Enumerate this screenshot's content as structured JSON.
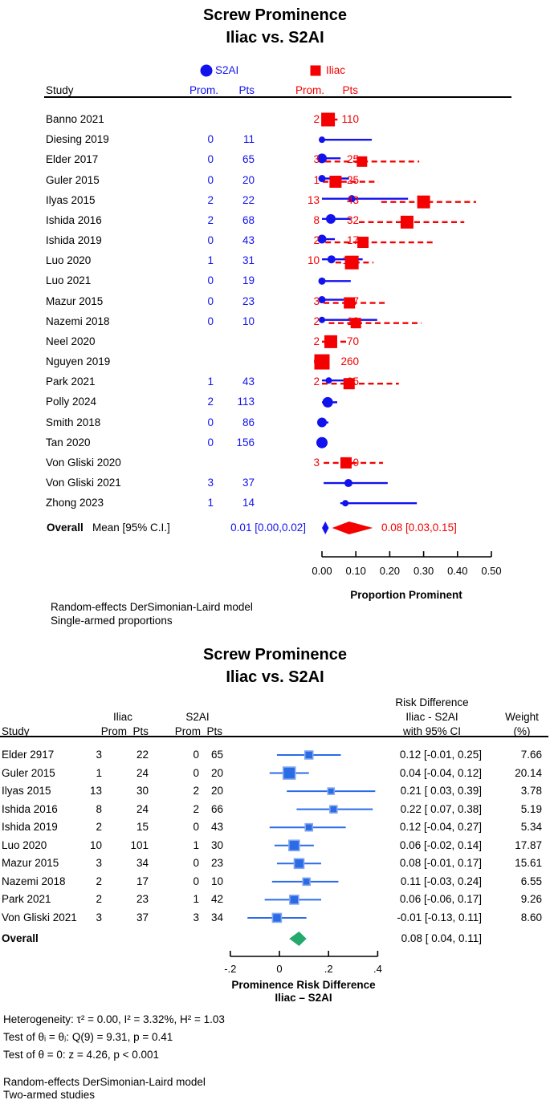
{
  "colors": {
    "s2ai_blue": "#1212ee",
    "iliac_red": "#f40000",
    "rd_blue_fill": "#2b6be6",
    "rd_blue_border": "#84a8f0",
    "overall_green": "#23a96b",
    "text": "#000000"
  },
  "chart_data": [
    {
      "type": "forest",
      "title_lines": [
        "Screw Prominence",
        "Iliac vs. S2AI"
      ],
      "legend": [
        {
          "label": "S2AI",
          "marker": "circle",
          "color": "#1212ee"
        },
        {
          "label": "Iliac",
          "marker": "square",
          "color": "#f40000"
        }
      ],
      "column_headers": {
        "study": "Study",
        "s2ai_prom": "Prom.",
        "s2ai_pts": "Pts",
        "iliac_prom": "Prom.",
        "iliac_pts": "Pts"
      },
      "xlabel": "Proportion Prominent",
      "xlim": [
        0,
        0.5
      ],
      "grid": false,
      "xticks": [
        {
          "v": 0.0,
          "label": "0.00"
        },
        {
          "v": 0.1,
          "label": "0.10"
        },
        {
          "v": 0.2,
          "label": "0.20"
        },
        {
          "v": 0.3,
          "label": "0.30"
        },
        {
          "v": 0.4,
          "label": "0.40"
        },
        {
          "v": 0.5,
          "label": "0.50"
        }
      ],
      "rows": [
        {
          "study": "Banno 2021",
          "iliac": {
            "prom": 2,
            "pts": 110,
            "est": 0.018,
            "lo": 0.002,
            "hi": 0.046,
            "size": 17
          }
        },
        {
          "study": "Diesing 2019",
          "s2ai": {
            "prom": 0,
            "pts": 11,
            "est": 0.0,
            "lo": 0.0,
            "hi": 0.147,
            "size": 8
          }
        },
        {
          "study": "Elder 2017",
          "s2ai": {
            "prom": 0,
            "pts": 65,
            "est": 0.0,
            "lo": 0.0,
            "hi": 0.055,
            "size": 12
          },
          "iliac": {
            "prom": 3,
            "pts": 25,
            "est": 0.118,
            "lo": 0.01,
            "hi": 0.287,
            "size": 13
          }
        },
        {
          "study": "Guler 2015",
          "s2ai": {
            "prom": 0,
            "pts": 20,
            "est": 0.0,
            "lo": 0.0,
            "hi": 0.08,
            "size": 9
          },
          "iliac": {
            "prom": 1,
            "pts": 25,
            "est": 0.04,
            "lo": 0.002,
            "hi": 0.166,
            "size": 15
          }
        },
        {
          "study": "Ilyas 2015",
          "s2ai": {
            "prom": 2,
            "pts": 22,
            "est": 0.088,
            "lo": 0.0,
            "hi": 0.254,
            "size": 9
          },
          "iliac": {
            "prom": 13,
            "pts": 43,
            "est": 0.3,
            "lo": 0.175,
            "hi": 0.455,
            "size": 16
          }
        },
        {
          "study": "Ishida 2016",
          "s2ai": {
            "prom": 2,
            "pts": 68,
            "est": 0.026,
            "lo": 0.0,
            "hi": 0.085,
            "size": 12
          },
          "iliac": {
            "prom": 8,
            "pts": 32,
            "est": 0.251,
            "lo": 0.109,
            "hi": 0.42,
            "size": 16
          }
        },
        {
          "study": "Ishida 2019",
          "s2ai": {
            "prom": 0,
            "pts": 43,
            "est": 0.0,
            "lo": 0.0,
            "hi": 0.038,
            "size": 11
          },
          "iliac": {
            "prom": 2,
            "pts": 17,
            "est": 0.121,
            "lo": 0.01,
            "hi": 0.327,
            "size": 14
          }
        },
        {
          "study": "Luo 2020",
          "s2ai": {
            "prom": 1,
            "pts": 31,
            "est": 0.028,
            "lo": 0.0,
            "hi": 0.12,
            "size": 10
          },
          "iliac": {
            "prom": 10,
            "pts": 111,
            "est": 0.088,
            "lo": 0.04,
            "hi": 0.152,
            "size": 17
          }
        },
        {
          "study": "Luo 2021",
          "s2ai": {
            "prom": 0,
            "pts": 19,
            "est": 0.0,
            "lo": 0.0,
            "hi": 0.085,
            "size": 9
          }
        },
        {
          "study": "Mazur 2015",
          "s2ai": {
            "prom": 0,
            "pts": 23,
            "est": 0.0,
            "lo": 0.0,
            "hi": 0.064,
            "size": 9
          },
          "iliac": {
            "prom": 3,
            "pts": 37,
            "est": 0.081,
            "lo": 0.005,
            "hi": 0.187,
            "size": 14
          }
        },
        {
          "study": "Nazemi 2018",
          "s2ai": {
            "prom": 0,
            "pts": 10,
            "est": 0.0,
            "lo": 0.0,
            "hi": 0.163,
            "size": 8
          },
          "iliac": {
            "prom": 2,
            "pts": 19,
            "est": 0.1,
            "lo": 0.02,
            "hi": 0.294,
            "size": 13
          }
        },
        {
          "study": "Neel 2020",
          "iliac": {
            "prom": 2,
            "pts": 70,
            "est": 0.026,
            "lo": 0.0,
            "hi": 0.076,
            "size": 16
          }
        },
        {
          "study": "Nguyen 2019",
          "iliac": {
            "prom": 0,
            "pts": 260,
            "est": 0.0,
            "lo": 0.0,
            "hi": 0.008,
            "size": 19
          }
        },
        {
          "study": "Park 2021",
          "s2ai": {
            "prom": 1,
            "pts": 43,
            "est": 0.02,
            "lo": 0.0,
            "hi": 0.075,
            "size": 8
          },
          "iliac": {
            "prom": 2,
            "pts": 25,
            "est": 0.08,
            "lo": 0.0,
            "hi": 0.227,
            "size": 14
          }
        },
        {
          "study": "Polly 2024",
          "s2ai": {
            "prom": 2,
            "pts": 113,
            "est": 0.017,
            "lo": 0.0,
            "hi": 0.045,
            "size": 13
          }
        },
        {
          "study": "Smith 2018",
          "s2ai": {
            "prom": 0,
            "pts": 86,
            "est": 0.0,
            "lo": 0.0,
            "hi": 0.019,
            "size": 12
          }
        },
        {
          "study": "Tan 2020",
          "s2ai": {
            "prom": 0,
            "pts": 156,
            "est": 0.0,
            "lo": 0.0,
            "hi": 0.01,
            "size": 14
          }
        },
        {
          "study": "Von Gliski 2020",
          "iliac": {
            "prom": 3,
            "pts": 40,
            "est": 0.071,
            "lo": 0.005,
            "hi": 0.18,
            "size": 14
          }
        },
        {
          "study": "Von Gliski 2021",
          "s2ai": {
            "prom": 3,
            "pts": 37,
            "est": 0.078,
            "lo": 0.005,
            "hi": 0.194,
            "size": 10
          }
        },
        {
          "study": "Zhong 2023",
          "s2ai": {
            "prom": 1,
            "pts": 14,
            "est": 0.069,
            "lo": 0.054,
            "hi": 0.28,
            "size": 8
          }
        }
      ],
      "overall": {
        "label": "Overall",
        "sublabel": "Mean [95% C.I.]",
        "s2ai_text": "0.01 [0.00,0.02]",
        "s2ai": {
          "est": 0.01,
          "lo": 0.0,
          "hi": 0.02
        },
        "iliac_text": "0.08 [0.03,0.15]",
        "iliac": {
          "est": 0.08,
          "lo": 0.03,
          "hi": 0.15
        }
      },
      "footnotes": [
        "Random-effects DerSimonian-Laird model",
        "Single-armed proportions"
      ]
    },
    {
      "type": "forest",
      "title_lines": [
        "Screw Prominence",
        "Iliac vs. S2AI"
      ],
      "group_headers": {
        "iliac": "Iliac",
        "s2ai": "S2AI",
        "rd_line1": "Risk Difference",
        "rd_line2": "Iliac - S2AI",
        "rd_line3": "with 95% CI",
        "weight_line1": "Weight",
        "weight_line2": "(%)"
      },
      "column_headers": {
        "study": "Study",
        "prom": "Prom",
        "pts": "Pts"
      },
      "xlabel_lines": [
        "Prominence Risk Difference",
        "Iliac – S2AI"
      ],
      "xlim": [
        -0.2,
        0.4
      ],
      "grid": false,
      "xticks": [
        {
          "v": -0.2,
          "label": "-.2"
        },
        {
          "v": 0.0,
          "label": "0"
        },
        {
          "v": 0.2,
          "label": ".2"
        },
        {
          "v": 0.4,
          "label": ".4"
        }
      ],
      "rows": [
        {
          "study": "Elder 2917",
          "iliac_prom": 3,
          "iliac_pts": 22,
          "s2ai_prom": 0,
          "s2ai_pts": 65,
          "rd": "0.12 [-0.01, 0.25]",
          "est": 0.12,
          "lo": -0.01,
          "hi": 0.25,
          "weight": "7.66",
          "size": 10
        },
        {
          "study": "Guler 2015",
          "iliac_prom": 1,
          "iliac_pts": 24,
          "s2ai_prom": 0,
          "s2ai_pts": 20,
          "rd": "0.04 [-0.04, 0.12]",
          "est": 0.04,
          "lo": -0.04,
          "hi": 0.12,
          "weight": "20.14",
          "size": 15
        },
        {
          "study": "Ilyas 2015",
          "iliac_prom": 13,
          "iliac_pts": 30,
          "s2ai_prom": 2,
          "s2ai_pts": 20,
          "rd": "0.21 [ 0.03, 0.39]",
          "est": 0.21,
          "lo": 0.03,
          "hi": 0.39,
          "weight": "3.78",
          "size": 8
        },
        {
          "study": "Ishida 2016",
          "iliac_prom": 8,
          "iliac_pts": 24,
          "s2ai_prom": 2,
          "s2ai_pts": 66,
          "rd": "0.22 [ 0.07, 0.38]",
          "est": 0.22,
          "lo": 0.07,
          "hi": 0.38,
          "weight": "5.19",
          "size": 9
        },
        {
          "study": "Ishida 2019",
          "iliac_prom": 2,
          "iliac_pts": 15,
          "s2ai_prom": 0,
          "s2ai_pts": 43,
          "rd": "0.12 [-0.04, 0.27]",
          "est": 0.12,
          "lo": -0.04,
          "hi": 0.27,
          "weight": "5.34",
          "size": 9
        },
        {
          "study": "Luo 2020",
          "iliac_prom": 10,
          "iliac_pts": 101,
          "s2ai_prom": 1,
          "s2ai_pts": 30,
          "rd": "0.06 [-0.02, 0.14]",
          "est": 0.06,
          "lo": -0.02,
          "hi": 0.14,
          "weight": "17.87",
          "size": 13
        },
        {
          "study": "Mazur 2015",
          "iliac_prom": 3,
          "iliac_pts": 34,
          "s2ai_prom": 0,
          "s2ai_pts": 23,
          "rd": "0.08 [-0.01, 0.17]",
          "est": 0.08,
          "lo": -0.01,
          "hi": 0.17,
          "weight": "15.61",
          "size": 12
        },
        {
          "study": "Nazemi 2018",
          "iliac_prom": 2,
          "iliac_pts": 17,
          "s2ai_prom": 0,
          "s2ai_pts": 10,
          "rd": "0.11 [-0.03, 0.24]",
          "est": 0.11,
          "lo": -0.03,
          "hi": 0.24,
          "weight": "6.55",
          "size": 9
        },
        {
          "study": "Park 2021",
          "iliac_prom": 2,
          "iliac_pts": 23,
          "s2ai_prom": 1,
          "s2ai_pts": 42,
          "rd": "0.06 [-0.06, 0.17]",
          "est": 0.06,
          "lo": -0.06,
          "hi": 0.17,
          "weight": "9.26",
          "size": 11
        },
        {
          "study": "Von Gliski 2021",
          "iliac_prom": 3,
          "iliac_pts": 37,
          "s2ai_prom": 3,
          "s2ai_pts": 34,
          "rd": "-0.01 [-0.13, 0.11]",
          "est": -0.01,
          "lo": -0.13,
          "hi": 0.11,
          "weight": "8.60",
          "size": 11
        }
      ],
      "overall": {
        "label": "Overall",
        "rd": "0.08 [ 0.04, 0.11]",
        "est": 0.08,
        "lo": 0.04,
        "hi": 0.11
      },
      "stats": [
        "Heterogeneity: τ² = 0.00, I² = 3.32%, H² = 1.03",
        "Test of θᵢ = θⱼ: Q(9) = 9.31, p = 0.41",
        "Test of θ = 0: z = 4.26, p < 0.001"
      ],
      "footnotes": [
        "Random-effects DerSimonian-Laird model",
        "Two-armed studies"
      ]
    }
  ]
}
